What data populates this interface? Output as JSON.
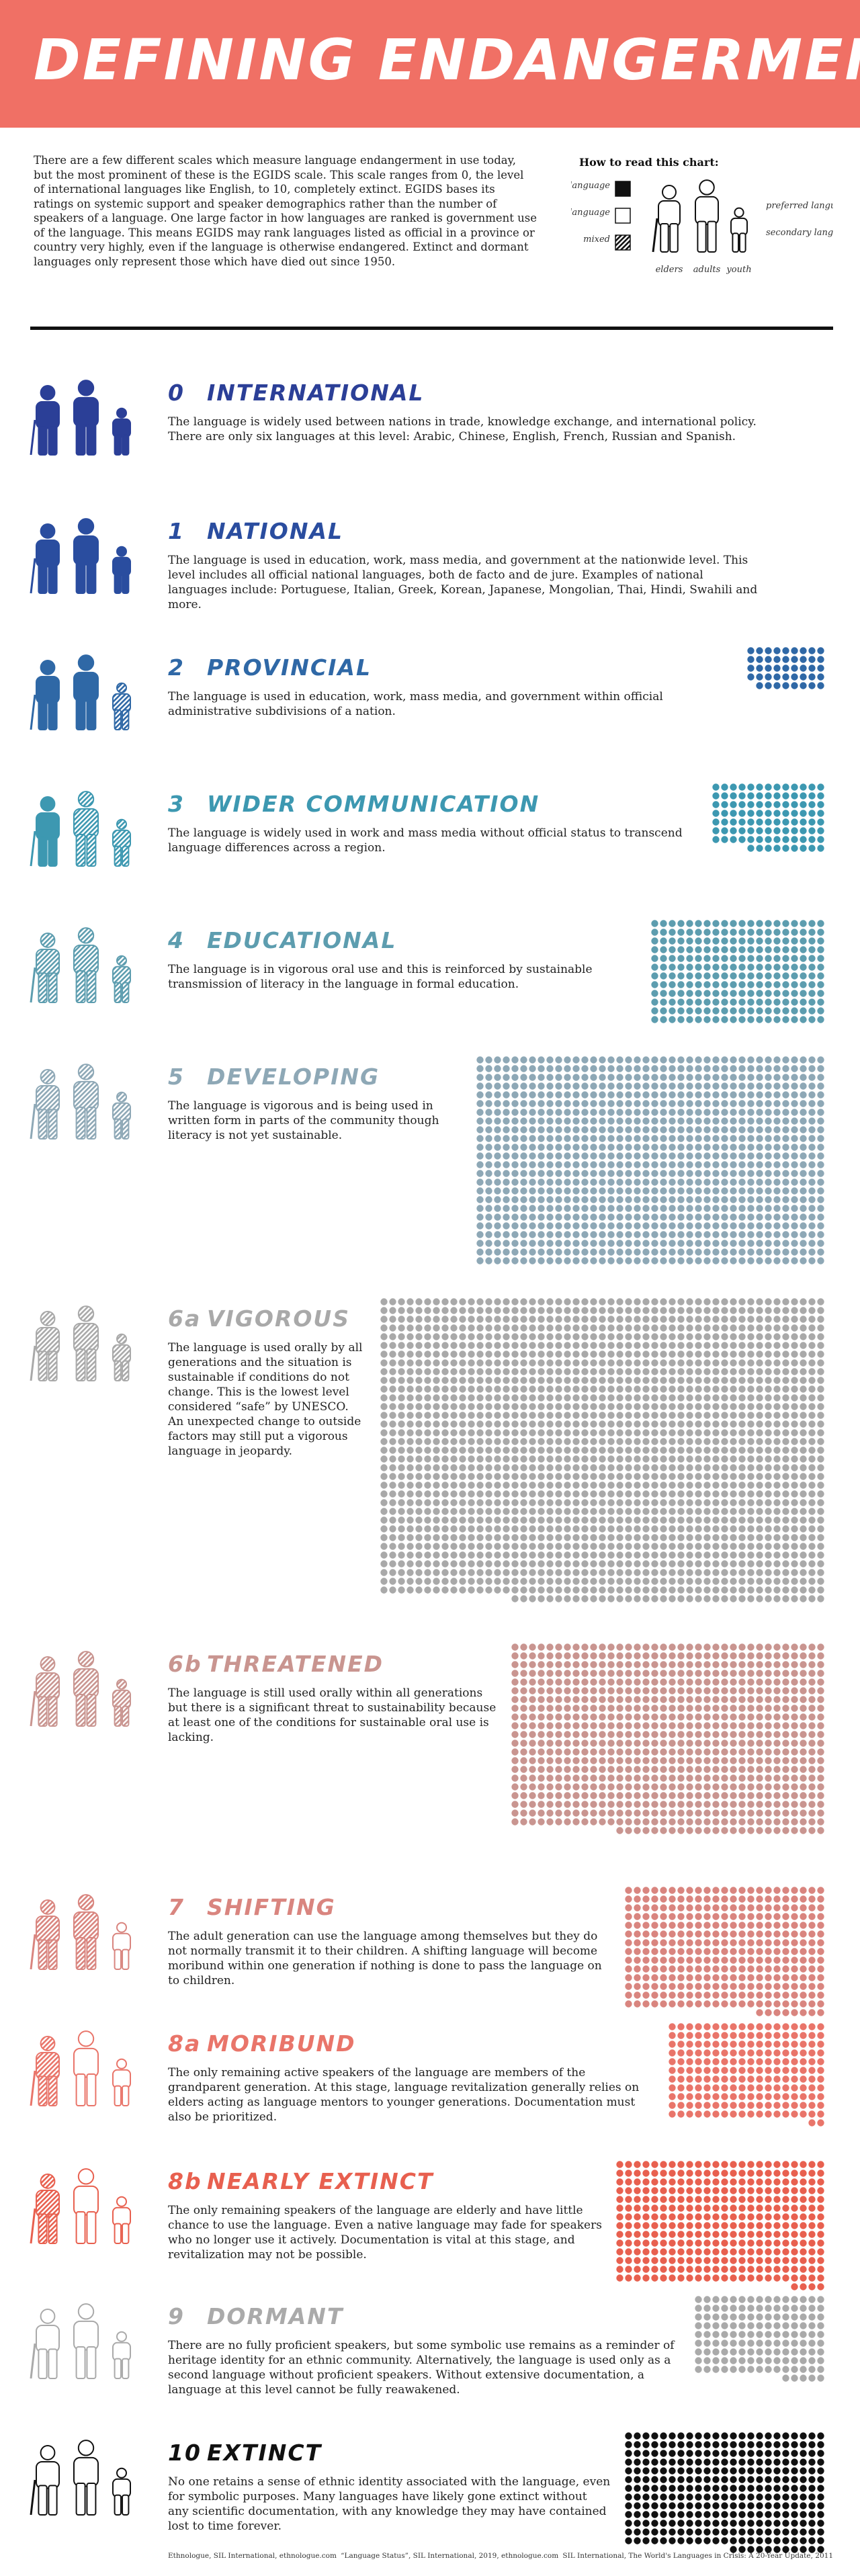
{
  "header": {
    "title": "DEFINING ENDANGERMENT"
  },
  "intro": "There are a few different scales which measure language endangerment in use today, but the most prominent of these is the EGIDS scale. This scale ranges from 0, the level of international languages like English, to 10, completely extinct. EGIDS bases its ratings on systemic support and speaker demographics rather than the number of speakers of a language. One large factor in how languages are ranked is government use of the language. This means EGIDS may rank languages listed as official in a province or country very highly, even if the language is otherwise endangered. Extinct and dormant languages only represent those which have died out since 1950.",
  "legend": {
    "title": "How to read this chart:",
    "heritage": "heritage language",
    "other": "other language",
    "mixed": "mixed",
    "elders": "elders",
    "adults": "adults",
    "youth": "youth",
    "preferred": "preferred language",
    "secondary": "secondary language"
  },
  "levels": [
    {
      "number": "0",
      "name": "INTERNATIONAL",
      "color": "#2b3f97",
      "figures": [
        "heritage",
        "heritage",
        "heritage"
      ],
      "description": "The language is widely used between nations in trade, knowledge exchange, and international policy. There are only six languages at this level: Arabic, Chinese, English, French, Russian and Spanish."
    },
    {
      "number": "1",
      "name": "NATIONAL",
      "color": "#2a4d9f",
      "figures": [
        "heritage",
        "heritage",
        "heritage"
      ],
      "description": "The language is used in education, work, mass media, and government at the nationwide level. This level includes all official national languages, both de facto and de jure. Examples of national languages include: Portuguese, Italian, Greek, Korean, Japanese, Mongolian, Thai, Hindi, Swahili and more."
    },
    {
      "number": "2",
      "name": "PROVINCIAL",
      "color": "#2f68a6",
      "figures": [
        "heritage",
        "heritage",
        "mixed"
      ],
      "dots": 44,
      "description": "The language is used in education, work, mass media, and government within official administrative subdivisions of a nation."
    },
    {
      "number": "3",
      "name": "WIDER COMMUNICATION",
      "color": "#3d98b1",
      "figures": [
        "heritage",
        "mixed",
        "mixed"
      ],
      "dots": 100,
      "description": "The language is widely used in work and mass media without official status to transcend language differences across a region."
    },
    {
      "number": "4",
      "name": "EDUCATIONAL",
      "color": "#5d9daf",
      "figures": [
        "mixed",
        "mixed",
        "mixed"
      ],
      "dots": 240,
      "description": "The language is in vigorous oral use and this is reinforced by sustainable transmission of literacy in the language in formal education."
    },
    {
      "number": "5",
      "name": "DEVELOPING",
      "color": "#8ea8b6",
      "figures": [
        "mixed",
        "mixed",
        "mixed"
      ],
      "dots": 960,
      "description": "The language is vigorous and is being used in written form in parts of the community though literacy is not yet sustainable."
    },
    {
      "number": "6a",
      "name": "VIGOROUS",
      "color": "#a9a9a9",
      "figures": [
        "mixed",
        "mixed",
        "mixed"
      ],
      "dots": 1770,
      "description": "The language is used orally by all generations and the situation is sustainable if conditions do not change. This is the lowest level considered “safe” by UNESCO. An unexpected change to outside factors may still put a vigorous language in jeopardy."
    },
    {
      "number": "6b",
      "name": "THREATENED",
      "color": "#c99590",
      "figures": [
        "mixed",
        "mixed",
        "mixed"
      ],
      "dots": 780,
      "description": "The language is still used orally within all generations but there is a significant threat to sustainability because at least one of the conditions for sustainable oral use is lacking."
    },
    {
      "number": "7",
      "name": "SHIFTING",
      "color": "#d9857f",
      "figures": [
        "mixed",
        "mixed",
        "other"
      ],
      "dots": 330,
      "description": "The adult generation can use the language among themselves but they do not normally transmit it to their children. A shifting language will become moribund within one generation if nothing is done to pass the language on to children."
    },
    {
      "number": "8a",
      "name": "MORIBUND",
      "color": "#e9756a",
      "figures": [
        "mixed",
        "other",
        "other"
      ],
      "dots": 200,
      "description": "The only remaining active speakers of the language are members of the grandparent generation. At this stage, language revitalization generally relies on elders acting as language mentors to younger generations. Documentation must also be prioritized."
    },
    {
      "number": "8b",
      "name": "NEARLY EXTINCT",
      "color": "#e8604f",
      "figures": [
        "mixed",
        "other",
        "other"
      ],
      "dots": 340,
      "description": "The only remaining speakers of the language are elderly and have little chance to use the language. Even a native language may fade for speakers who no longer use it actively. Documentation is vital at this stage, and revitalization may not be possible."
    },
    {
      "number": "9",
      "name": "DORMANT",
      "color": "#aaaaaa",
      "figures": [
        "other",
        "other",
        "other"
      ],
      "dots": 140,
      "description": "There are no fully proficient speakers, but some symbolic use remains as a reminder of heritage identity for an ethnic community. Alternatively, the language is used only as a second language without proficient speakers. Without extensive documentation, a language at this level cannot be fully reawakened."
    },
    {
      "number": "10",
      "name": "EXTINCT",
      "color": "#111111",
      "figures": [
        "other",
        "other",
        "other"
      ],
      "dots": 310,
      "description": "No one retains a sense of ethnic identity associated with the language, even for symbolic purposes. Many languages have likely gone extinct without any scientific documentation, with any knowledge they may have contained lost to time forever."
    }
  ],
  "sources": [
    "Ethnologue, SIL International, ethnologue.com",
    "“Language Status”, SIL International, 2019, ethnologue.com",
    "SIL International, The World's Languages in Crisis: A 20-Year Update, 2011"
  ]
}
